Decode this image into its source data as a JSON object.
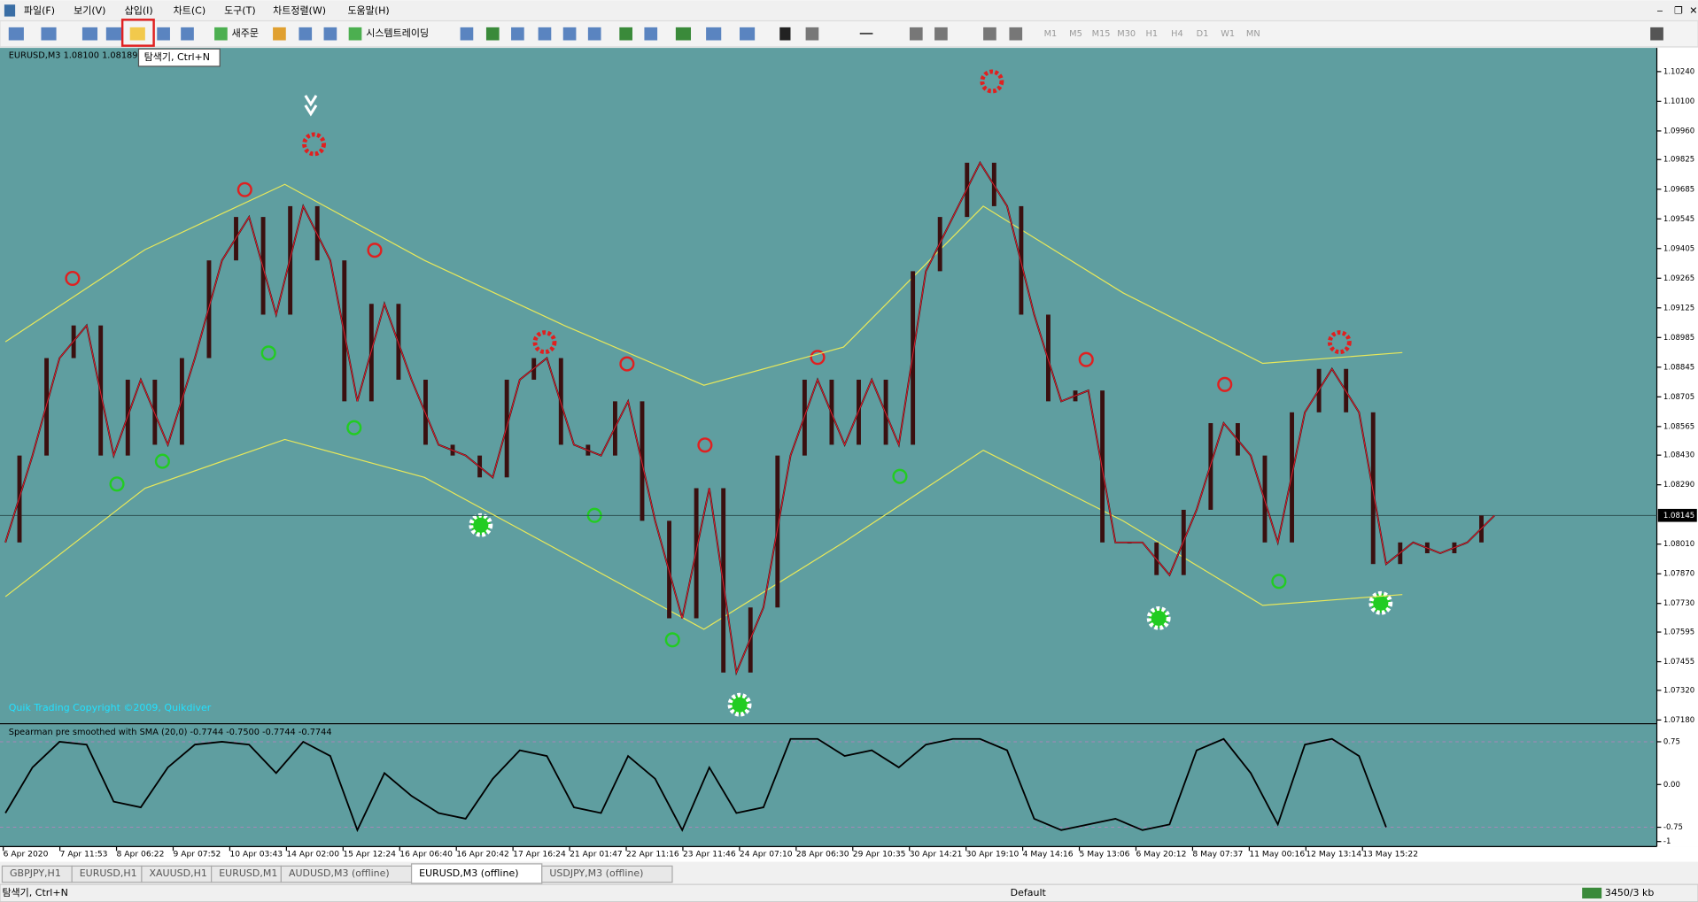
{
  "menu": [
    "파일(F)",
    "보기(V)",
    "삽입(I)",
    "차트(C)",
    "도구(T)",
    "차트정렬(W)",
    "도움말(H)"
  ],
  "toolbar": {
    "new_order": "새주문",
    "autotrading": "시스템트레이딩",
    "timeframes": [
      "M1",
      "M5",
      "M15",
      "M30",
      "H1",
      "H4",
      "D1",
      "W1",
      "MN"
    ]
  },
  "tooltip": "탐색기, Ctrl+N",
  "chart": {
    "header": "EURUSD,M3  1.08100 1.08189 1.0",
    "copyright": "Quik Trading   Copyright ©2009, Quikdiver",
    "ylim": [
      1.07165,
      1.10352
    ],
    "yticks": [
      {
        "value": 1.1024,
        "label": "1.10240"
      },
      {
        "value": 1.101,
        "label": "1.10100"
      },
      {
        "value": 1.0996,
        "label": "1.09960"
      },
      {
        "value": 1.09825,
        "label": "1.09825"
      },
      {
        "value": 1.09685,
        "label": "1.09685"
      },
      {
        "value": 1.09545,
        "label": "1.09545"
      },
      {
        "value": 1.09405,
        "label": "1.09405"
      },
      {
        "value": 1.09265,
        "label": "1.09265"
      },
      {
        "value": 1.09125,
        "label": "1.09125"
      },
      {
        "value": 1.08985,
        "label": "1.08985"
      },
      {
        "value": 1.08845,
        "label": "1.08845"
      },
      {
        "value": 1.08705,
        "label": "1.08705"
      },
      {
        "value": 1.08565,
        "label": "1.08565"
      },
      {
        "value": 1.0843,
        "label": "1.08430"
      },
      {
        "value": 1.0829,
        "label": "1.08290"
      },
      {
        "value": 1.0801,
        "label": "1.08010"
      },
      {
        "value": 1.0787,
        "label": "1.07870"
      },
      {
        "value": 1.0773,
        "label": "1.07730"
      },
      {
        "value": 1.07595,
        "label": "1.07595"
      },
      {
        "value": 1.07455,
        "label": "1.07455"
      },
      {
        "value": 1.0732,
        "label": "1.07320"
      },
      {
        "value": 1.0718,
        "label": "1.07180"
      }
    ],
    "current_price": {
      "value": 1.08145,
      "label": "1.08145"
    },
    "close": [
      1.08018,
      1.08428,
      1.08888,
      1.09042,
      1.08428,
      1.08786,
      1.08479,
      1.08888,
      1.09349,
      1.09554,
      1.09093,
      1.09605,
      1.09349,
      1.08684,
      1.09144,
      1.08786,
      1.08479,
      1.08428,
      1.08325,
      1.08786,
      1.08888,
      1.08479,
      1.08428,
      1.08684,
      1.0812,
      1.0766,
      1.08274,
      1.07404,
      1.07711,
      1.08428,
      1.08786,
      1.08479,
      1.08786,
      1.08479,
      1.09298,
      1.09554,
      1.0981,
      1.09605,
      1.09093,
      1.08684,
      1.08735,
      1.08018,
      1.08018,
      1.07864,
      1.08172,
      1.08581,
      1.08428,
      1.08018,
      1.08632,
      1.08837,
      1.08632,
      1.07916,
      1.08018,
      1.07967,
      1.08018,
      1.08145
    ],
    "upper_band": [
      1.08965,
      1.094,
      1.09708,
      1.09349,
      1.09042,
      1.0876,
      1.0894,
      1.09605,
      1.09196,
      1.08863,
      1.08914
    ],
    "lower_band": [
      1.07762,
      1.08274,
      1.08504,
      1.08325,
      1.07967,
      1.07608,
      1.08018,
      1.08453,
      1.0812,
      1.07721,
      1.07772
    ]
  },
  "indicator": {
    "label": "Spearman pre smoothed with SMA (20,0) -0.7744 -0.7500 -0.7744 -0.7744",
    "ylim": [
      -1.05,
      1
    ],
    "yticks": [
      0.75,
      {
        "value": 0,
        "label": "0.00"
      },
      -0.75,
      -1
    ],
    "values": [
      -0.5,
      0.3,
      0.75,
      0.7,
      -0.3,
      -0.4,
      0.3,
      0.7,
      0.75,
      0.7,
      0.2,
      0.75,
      0.5,
      -0.8,
      0.2,
      -0.2,
      -0.5,
      -0.6,
      0.1,
      0.6,
      0.5,
      -0.4,
      -0.5,
      0.5,
      0.1,
      -0.8,
      0.3,
      -0.5,
      -0.4,
      0.8,
      0.8,
      0.5,
      0.6,
      0.3,
      0.7,
      0.8,
      0.8,
      0.6,
      -0.6,
      -0.8,
      -0.7,
      -0.6,
      -0.8,
      -0.7,
      0.6,
      0.8,
      0.2,
      -0.7,
      0.7,
      0.8,
      0.5,
      -0.75
    ]
  },
  "dates": [
    "6 Apr 2020",
    "7 Apr 11:53",
    "8 Apr 06:22",
    "9 Apr 07:52",
    "10 Apr 03:43",
    "14 Apr 02:00",
    "15 Apr 12:24",
    "16 Apr 06:40",
    "16 Apr 20:42",
    "17 Apr 16:24",
    "21 Apr 01:47",
    "22 Apr 11:16",
    "23 Apr 11:46",
    "24 Apr 07:10",
    "28 Apr 06:30",
    "29 Apr 10:35",
    "30 Apr 14:21",
    "30 Apr 19:10",
    "4 May 14:16",
    "5 May 13:06",
    "6 May 20:12",
    "8 May 07:37",
    "11 May 00:16",
    "12 May 13:14",
    "13 May 15:22"
  ],
  "tabs": [
    "GBPJPY,H1",
    "EURUSD,H1",
    "XAUUSD,H1",
    "EURUSD,M1",
    "AUDUSD,M3 (offline)",
    "EURUSD,M3 (offline)",
    "USDJPY,M3 (offline)"
  ],
  "active_tab": 5,
  "status": {
    "left": "탐색기, Ctrl+N",
    "profile": "Default",
    "traffic": "3450/3 kb"
  }
}
